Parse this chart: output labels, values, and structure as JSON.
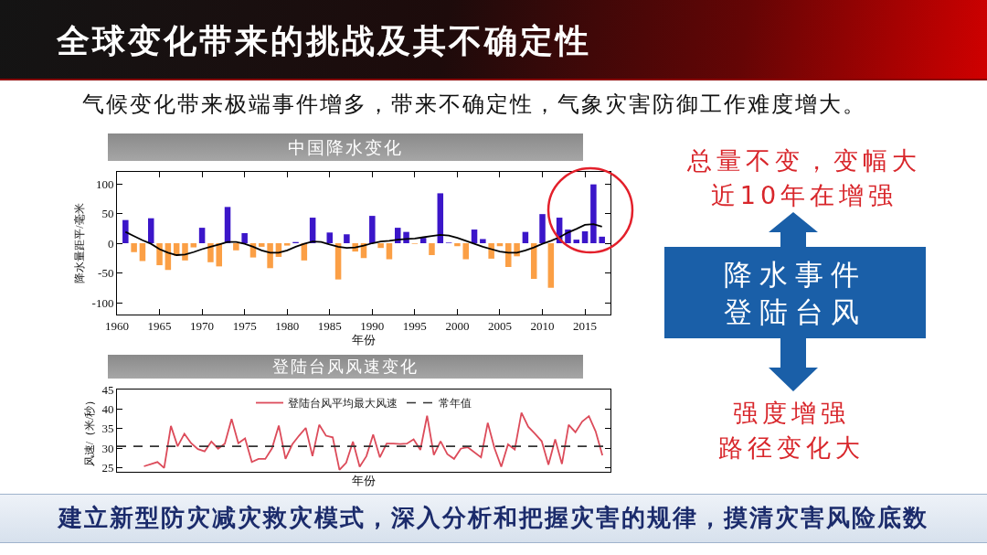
{
  "chart_data": [
    {
      "type": "other",
      "title": "全球变化带来的挑战及其不确定性",
      "subtitle": "气候变化带来极端事件增多，带来不确定性，气象灾害防御工作难度增大。",
      "annotations": [
        "总量不变，变幅大",
        "近10年在增强",
        "降水事件",
        "登陆台风",
        "强度增强",
        "路径变化大",
        "建立新型防灾减灾救灾模式，深入分析和把握灾害的规律，摸清灾害风险底数"
      ]
    },
    {
      "type": "bar",
      "title": "中国降水变化",
      "xlabel": "年份",
      "ylabel": "降水量距平/毫米",
      "x": [
        1961,
        1962,
        1963,
        1964,
        1965,
        1966,
        1967,
        1968,
        1969,
        1970,
        1971,
        1972,
        1973,
        1974,
        1975,
        1976,
        1977,
        1978,
        1979,
        1980,
        1981,
        1982,
        1983,
        1984,
        1985,
        1986,
        1987,
        1988,
        1989,
        1990,
        1991,
        1992,
        1993,
        1994,
        1995,
        1996,
        1997,
        1998,
        1999,
        2000,
        2001,
        2002,
        2003,
        2004,
        2005,
        2006,
        2007,
        2008,
        2009,
        2010,
        2011,
        2012,
        2013,
        2014,
        2015,
        2016,
        2017
      ],
      "series": [
        {
          "values": [
            39,
            -15,
            -30,
            42,
            -37,
            -45,
            -21,
            -29,
            -7,
            26,
            -32,
            -39,
            61,
            -12,
            17,
            -24,
            -6,
            -42,
            -23,
            -4,
            2,
            -29,
            43,
            null,
            18,
            -61,
            15,
            -14,
            -25,
            46,
            -8,
            -27,
            26,
            19,
            -1,
            9,
            -20,
            84,
            1,
            -5,
            -27,
            23,
            7,
            -26,
            -5,
            -40,
            -22,
            19,
            -60,
            49,
            -75,
            43,
            23,
            6,
            20,
            99,
            11
          ],
          "colors": [
            "#3b16c9",
            "#fb9f45",
            "#fb9f45",
            "#3b16c9",
            "#fb9f45",
            "#fb9f45",
            "#fb9f45",
            "#fb9f45",
            "#fb9f45",
            "#3b16c9",
            "#fb9f45",
            "#fb9f45",
            "#3b16c9",
            "#fb9f45",
            "#3b16c9",
            "#fb9f45",
            "#fb9f45",
            "#fb9f45",
            "#fb9f45",
            "#fb9f45",
            "#3b16c9",
            "#fb9f45",
            "#3b16c9",
            "#fb9f45",
            "#3b16c9",
            "#fb9f45",
            "#3b16c9",
            "#fb9f45",
            "#fb9f45",
            "#3b16c9",
            "#fb9f45",
            "#fb9f45",
            "#3b16c9",
            "#3b16c9",
            "#fb9f45",
            "#3b16c9",
            "#fb9f45",
            "#3b16c9",
            "#3b16c9",
            "#fb9f45",
            "#fb9f45",
            "#3b16c9",
            "#3b16c9",
            "#fb9f45",
            "#fb9f45",
            "#fb9f45",
            "#fb9f45",
            "#3b16c9",
            "#fb9f45",
            "#3b16c9",
            "#fb9f45",
            "#3b16c9",
            "#3b16c9",
            "#3b16c9",
            "#3b16c9",
            "#3b16c9",
            "#3b16c9"
          ]
        },
        {
          "type": "line",
          "color": "#000000",
          "x": [
            1961,
            1962,
            1963,
            1964,
            1965,
            1966,
            1967,
            1968,
            1969,
            1970,
            1971,
            1972,
            1973,
            1974,
            1975,
            1976,
            1977,
            1978,
            1979,
            1980,
            1981,
            1982,
            1983,
            1984,
            1985,
            1986,
            1987,
            1988,
            1989,
            1990,
            1991,
            1992,
            1993,
            1994,
            1995,
            1996,
            1997,
            1998,
            1999,
            2000,
            2001,
            2002,
            2003,
            2004,
            2005,
            2006,
            2007,
            2008,
            2009,
            2010,
            2011,
            2012,
            2013,
            2014,
            2015,
            2016,
            2017
          ],
          "values": [
            19,
            12,
            5,
            -1,
            -10,
            -16,
            -20,
            -19,
            -15,
            -10,
            -6,
            -2,
            2,
            2,
            -1,
            -6,
            -12,
            -16,
            -16,
            -12,
            -6,
            -1,
            3,
            2,
            -2,
            -6,
            -8,
            -7,
            -4,
            0,
            3,
            4,
            6,
            7,
            8,
            10,
            12,
            14,
            13,
            9,
            4,
            -1,
            -6,
            -10,
            -14,
            -16,
            -16,
            -12,
            -7,
            -1,
            4,
            10,
            18,
            24,
            31,
            32,
            28
          ]
        }
      ],
      "xlim": [
        1960,
        2018
      ],
      "xticks": [
        1960,
        1965,
        1970,
        1975,
        1980,
        1985,
        1990,
        1995,
        2000,
        2005,
        2010,
        2015
      ],
      "ylim": [
        -120,
        120
      ],
      "yticks": [
        -100,
        -50,
        0,
        50,
        100
      ]
    },
    {
      "type": "line",
      "title": "登陆台风风速变化",
      "xlabel": "年份",
      "ylabel": "风速/（米/秒）",
      "categories": [
        null,
        null,
        null,
        null,
        null,
        null,
        null,
        null,
        null,
        null,
        null,
        null,
        null,
        null,
        null,
        null,
        null,
        null,
        null,
        null,
        null,
        null,
        null,
        null,
        null,
        null,
        null,
        null,
        null,
        null,
        null,
        null,
        null,
        null,
        null,
        null,
        null,
        null,
        null,
        null,
        null,
        null,
        null,
        null,
        null,
        null,
        null,
        null,
        null,
        null,
        null,
        null,
        null,
        null,
        null,
        null,
        null,
        null,
        null,
        null,
        null,
        null,
        null,
        null,
        null,
        null,
        null,
        null,
        null
      ],
      "series": [
        {
          "name": "登陆台风平均最大风速",
          "color": "#dc4b5a",
          "values": [
            25.4,
            null,
            26.5,
            25.0,
            35.7,
            30.5,
            33.7,
            31.3,
            29.8,
            29.2,
            31.7,
            29.9,
            31.2,
            37.5,
            31.3,
            32.5,
            26.5,
            27.3,
            27.3,
            30.0,
            35.8,
            27.3,
            31.0,
            33.2,
            35.2,
            28.0,
            36.0,
            33.2,
            32.8,
            24.5,
            26.3,
            31.7,
            25.3,
            28.0,
            33.5,
            27.7,
            31.2,
            31.2,
            31.1,
            31.2,
            32.3,
            29.6,
            38.3,
            28.3,
            31.8,
            28.5,
            27.3,
            29.9,
            30.3,
            null,
            27.7,
            36.5,
            30.0,
            25.3,
            31.0,
            29.7,
            39.1,
            35.5,
            33.7,
            31.8,
            25.8,
            32.3,
            26.0,
            36.0,
            34.1,
            36.8,
            38.2,
            34.3,
            28.2
          ]
        }
      ],
      "ylim": [
        24,
        45
      ],
      "yticks": [
        25,
        30,
        35,
        40,
        45
      ],
      "ref_lines": [
        {
          "axis": "y",
          "value": 30.5,
          "label": "常年值",
          "color": "#333333",
          "line_style": "dashed"
        }
      ],
      "legend": "top",
      "tick_labels": "y"
    }
  ]
}
